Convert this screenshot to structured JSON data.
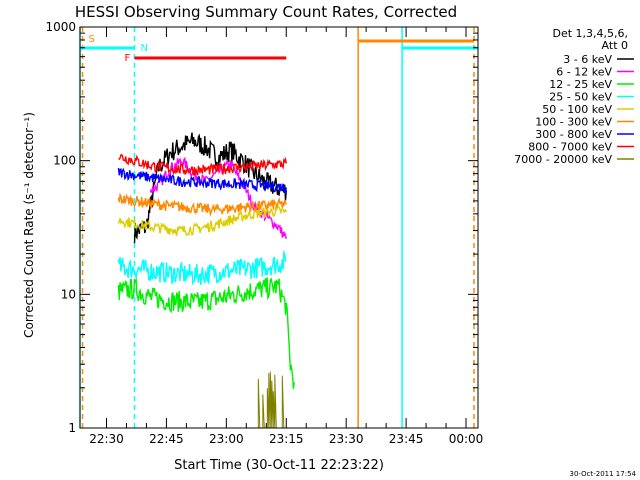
{
  "chart_data": {
    "type": "line",
    "title": "HESSI Observing Summary Count Rates, Corrected",
    "xlabel": "Start Time (30-Oct-11 22:23:22)",
    "ylabel": "Corrected Count Rate (s⁻¹ detector⁻¹)",
    "x_range": [
      "22:23:22",
      "00:03"
    ],
    "x_ticks": [
      "22:30",
      "22:45",
      "23:00",
      "23:15",
      "23:30",
      "23:45",
      "00:00"
    ],
    "y_scale": "log",
    "ylim": [
      1,
      1000
    ],
    "y_ticks": [
      "1",
      "10",
      "100",
      "1000"
    ],
    "legend": {
      "header": [
        "Det 1,3,4,5,6,",
        "Att 0"
      ],
      "placement": "right outside"
    },
    "series": [
      {
        "name": "3 - 6 keV",
        "color": "#000000",
        "time_range": [
          "22:37",
          "23:15"
        ],
        "x": [
          "22:37",
          "22:40",
          "22:43",
          "22:46",
          "22:49",
          "22:52",
          "22:55",
          "22:58",
          "23:01",
          "23:04",
          "23:07",
          "23:10",
          "23:13",
          "23:15"
        ],
        "values": [
          29,
          32,
          88,
          115,
          130,
          140,
          125,
          105,
          120,
          100,
          80,
          68,
          62,
          60
        ]
      },
      {
        "name": "6 - 12 keV",
        "color": "#ff00ff",
        "time_range": [
          "22:41",
          "23:15"
        ],
        "x": [
          "22:41",
          "22:43",
          "22:46",
          "22:49",
          "22:52",
          "22:55",
          "22:58",
          "23:01",
          "23:04",
          "23:07",
          "23:10",
          "23:13",
          "23:15"
        ],
        "values": [
          60,
          65,
          88,
          100,
          78,
          70,
          82,
          95,
          68,
          45,
          38,
          32,
          26
        ]
      },
      {
        "name": "12 - 25 keV",
        "color": "#00ee00",
        "time_range": [
          "22:33",
          "23:17"
        ],
        "x": [
          "22:33",
          "22:37",
          "22:41",
          "22:45",
          "22:49",
          "22:53",
          "22:57",
          "23:01",
          "23:05",
          "23:09",
          "23:13",
          "23:15",
          "23:16",
          "23:17"
        ],
        "values": [
          10.5,
          11,
          9.5,
          9,
          8.8,
          8.7,
          9.2,
          9.8,
          10.5,
          11,
          11.5,
          8,
          3,
          2.2
        ]
      },
      {
        "name": "25 - 50 keV",
        "color": "#00ffff",
        "time_range": [
          "22:33",
          "23:15"
        ],
        "x": [
          "22:33",
          "22:37",
          "22:41",
          "22:45",
          "22:49",
          "22:53",
          "22:57",
          "23:01",
          "23:05",
          "23:09",
          "23:13",
          "23:15"
        ],
        "values": [
          16,
          15.5,
          15,
          14.5,
          14.2,
          14,
          14.5,
          15,
          15.5,
          16,
          17,
          17.5
        ]
      },
      {
        "name": "50 - 100 keV",
        "color": "#ddcc00",
        "time_range": [
          "22:33",
          "23:15"
        ],
        "x": [
          "22:33",
          "22:37",
          "22:41",
          "22:45",
          "22:49",
          "22:53",
          "22:57",
          "23:01",
          "23:05",
          "23:09",
          "23:13",
          "23:15"
        ],
        "values": [
          36,
          34,
          32,
          31,
          30,
          31,
          33,
          36,
          39,
          41,
          42,
          41
        ]
      },
      {
        "name": "100 - 300 keV",
        "color": "#ff8800",
        "time_range": [
          "22:33",
          "23:15"
        ],
        "x": [
          "22:33",
          "22:37",
          "22:41",
          "22:45",
          "22:49",
          "22:53",
          "22:57",
          "23:01",
          "23:05",
          "23:09",
          "23:13",
          "23:15"
        ],
        "values": [
          52,
          50,
          48,
          46,
          45,
          44,
          43,
          44,
          45,
          46,
          47,
          47
        ]
      },
      {
        "name": "300 - 800 keV",
        "color": "#0000ff",
        "time_range": [
          "22:33",
          "23:15"
        ],
        "x": [
          "22:33",
          "22:37",
          "22:41",
          "22:45",
          "22:49",
          "22:53",
          "22:57",
          "23:01",
          "23:05",
          "23:09",
          "23:13",
          "23:15"
        ],
        "values": [
          82,
          78,
          75,
          72,
          70,
          69,
          68,
          67,
          66,
          65,
          64,
          63
        ]
      },
      {
        "name": "800 - 7000 keV",
        "color": "#ff0000",
        "time_range": [
          "22:33",
          "23:15"
        ],
        "x": [
          "22:33",
          "22:37",
          "22:41",
          "22:45",
          "22:49",
          "22:53",
          "22:57",
          "23:01",
          "23:05",
          "23:09",
          "23:13",
          "23:15"
        ],
        "values": [
          108,
          100,
          92,
          88,
          86,
          85,
          86,
          88,
          90,
          92,
          94,
          95
        ]
      },
      {
        "name": "7000 - 20000 keV",
        "color": "#808000",
        "time_range": [
          "23:08",
          "23:15"
        ],
        "x": [
          "23:08",
          "23:09",
          "23:10",
          "23:11",
          "23:12",
          "23:13",
          "23:14",
          "23:15"
        ],
        "values": [
          1.6,
          1.5,
          1.5,
          1.6,
          1.5,
          1.4,
          1.6,
          1.5
        ]
      }
    ],
    "annotations": [
      {
        "label": "S",
        "color": "#ff8800",
        "from": "22:24",
        "to": "22:24"
      },
      {
        "label": "N",
        "color": "#00ffff",
        "from": "22:23:22",
        "to": "22:37"
      },
      {
        "label": "F",
        "color": "#ff0000",
        "from": "22:37",
        "to": "23:15"
      },
      {
        "color": "#ff8800",
        "from": "23:33",
        "to": "00:02"
      },
      {
        "color": "#00ffff",
        "from": "23:44",
        "to": "00:03"
      }
    ],
    "vertical_markers": [
      {
        "at": "22:23:22",
        "color": "#00ffff",
        "style": "solid"
      },
      {
        "at": "22:24",
        "color": "#ff8800",
        "style": "dashed"
      },
      {
        "at": "22:37",
        "color": "#00ffff",
        "style": "dashed"
      },
      {
        "at": "23:33",
        "color": "#ff8800",
        "style": "solid"
      },
      {
        "at": "23:44",
        "color": "#00ffff",
        "style": "solid"
      },
      {
        "at": "00:02",
        "color": "#ff8800",
        "style": "dashed"
      }
    ],
    "footer_timestamp": "30-Oct-2011 17:54",
    "grid": false
  }
}
